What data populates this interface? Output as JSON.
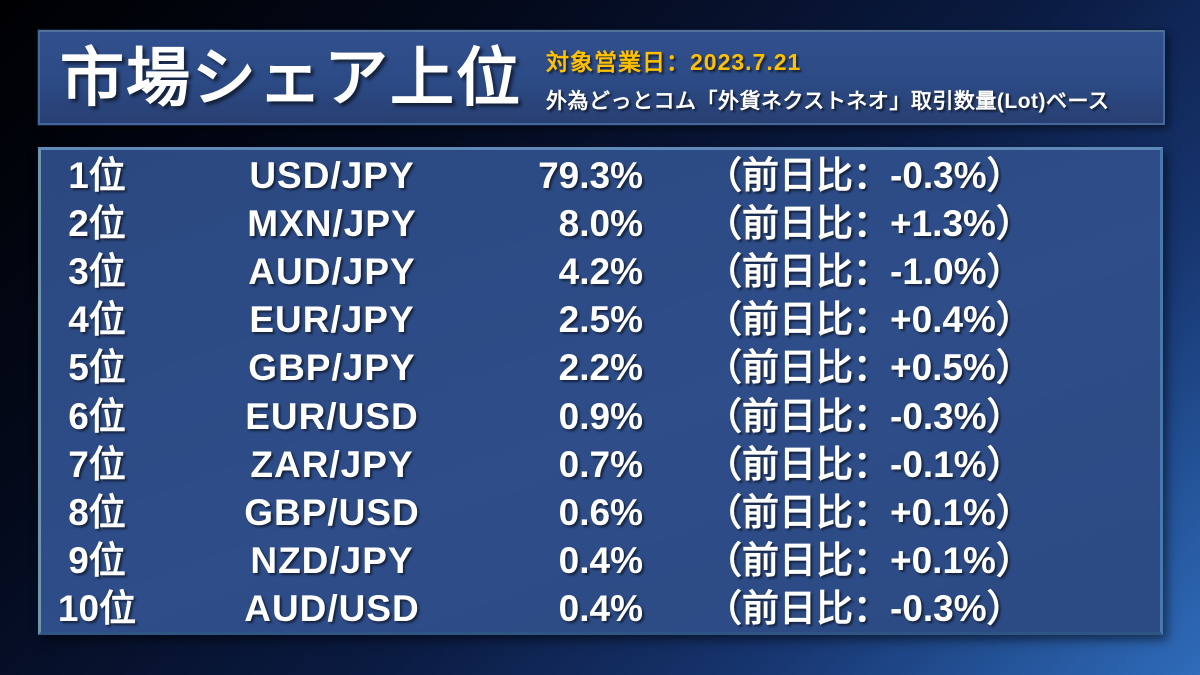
{
  "header": {
    "title": "市場シェア上位",
    "date_label": "対象営業日：2023.7.21",
    "subtitle": "外為どっとコム「外貨ネクストネオ」取引数量(Lot)ベース"
  },
  "colors": {
    "accent_yellow": "#FFC000",
    "panel_blue": "#2C4A85",
    "panel_border_light": "#6F96AD",
    "background_bright_blue": "#2F6CBA",
    "background_dark": "#04091C",
    "text_white": "#FFFFFF"
  },
  "chart_data": {
    "type": "table",
    "title": "市場シェア上位",
    "subtitle": "外為どっとコム「外貨ネクストネオ」取引数量(Lot)ベース",
    "target_business_day": "2023.7.21",
    "columns": [
      "rank",
      "pair",
      "share",
      "change_vs_prev_day"
    ],
    "rows": [
      {
        "rank": "1位",
        "pair": "USD/JPY",
        "share": "79.3%",
        "change": "（前日比：-0.3%）",
        "share_value": 79.3,
        "change_value": -0.3
      },
      {
        "rank": "2位",
        "pair": "MXN/JPY",
        "share": "8.0%",
        "change": "（前日比：+1.3%）",
        "share_value": 8.0,
        "change_value": 1.3
      },
      {
        "rank": "3位",
        "pair": "AUD/JPY",
        "share": "4.2%",
        "change": "（前日比：-1.0%）",
        "share_value": 4.2,
        "change_value": -1.0
      },
      {
        "rank": "4位",
        "pair": "EUR/JPY",
        "share": "2.5%",
        "change": "（前日比：+0.4%）",
        "share_value": 2.5,
        "change_value": 0.4
      },
      {
        "rank": "5位",
        "pair": "GBP/JPY",
        "share": "2.2%",
        "change": "（前日比：+0.5%）",
        "share_value": 2.2,
        "change_value": 0.5
      },
      {
        "rank": "6位",
        "pair": "EUR/USD",
        "share": "0.9%",
        "change": "（前日比：-0.3%）",
        "share_value": 0.9,
        "change_value": -0.3
      },
      {
        "rank": "7位",
        "pair": "ZAR/JPY",
        "share": "0.7%",
        "change": "（前日比：-0.1%）",
        "share_value": 0.7,
        "change_value": -0.1
      },
      {
        "rank": "8位",
        "pair": "GBP/USD",
        "share": "0.6%",
        "change": "（前日比：+0.1%）",
        "share_value": 0.6,
        "change_value": 0.1
      },
      {
        "rank": "9位",
        "pair": "NZD/JPY",
        "share": "0.4%",
        "change": "（前日比：+0.1%）",
        "share_value": 0.4,
        "change_value": 0.1
      },
      {
        "rank": "10位",
        "pair": "AUD/USD",
        "share": "0.4%",
        "change": "（前日比：-0.3%）",
        "share_value": 0.4,
        "change_value": -0.3
      }
    ]
  }
}
